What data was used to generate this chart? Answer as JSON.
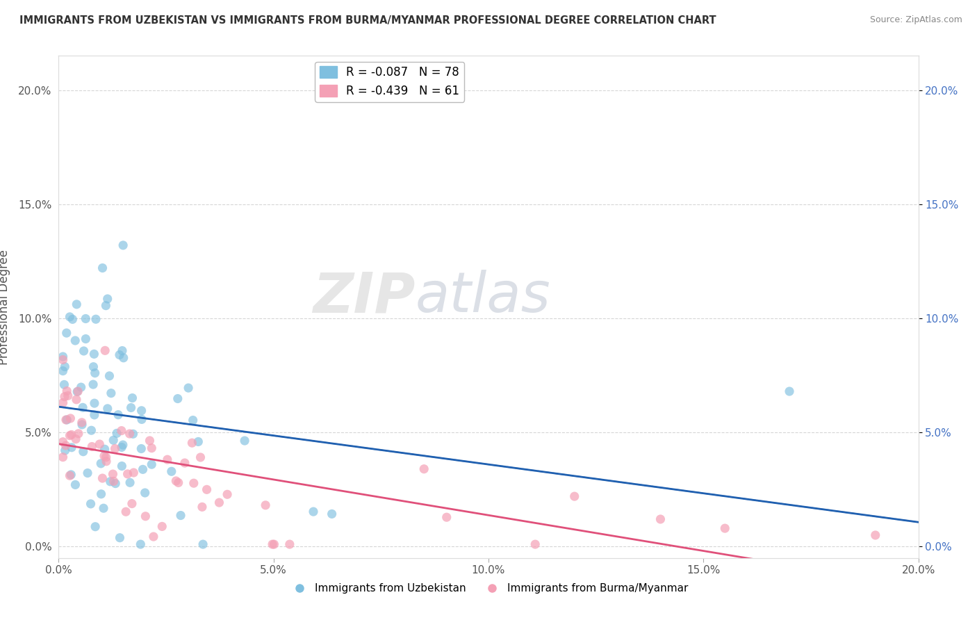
{
  "title": "IMMIGRANTS FROM UZBEKISTAN VS IMMIGRANTS FROM BURMA/MYANMAR PROFESSIONAL DEGREE CORRELATION CHART",
  "source": "Source: ZipAtlas.com",
  "ylabel": "Professional Degree",
  "series1_label": "Immigrants from Uzbekistan",
  "series2_label": "Immigrants from Burma/Myanmar",
  "series1_color": "#7fbfdf",
  "series2_color": "#f4a0b5",
  "series1_line_color": "#2060b0",
  "series2_line_color": "#e0507a",
  "series1_R": -0.087,
  "series1_N": 78,
  "series2_R": -0.439,
  "series2_N": 61,
  "xlim": [
    0.0,
    0.2
  ],
  "ylim": [
    -0.005,
    0.215
  ],
  "xtick_values": [
    0.0,
    0.05,
    0.1,
    0.15,
    0.2
  ],
  "xtick_labels": [
    "0.0%",
    "5.0%",
    "10.0%",
    "15.0%",
    "20.0%"
  ],
  "ytick_values": [
    0.0,
    0.05,
    0.1,
    0.15,
    0.2
  ],
  "ytick_labels": [
    "0.0%",
    "5.0%",
    "10.0%",
    "15.0%",
    "20.0%"
  ],
  "watermark_left": "ZIP",
  "watermark_right": "atlas",
  "background_color": "#ffffff",
  "grid_color": "#cccccc",
  "legend_color_blue": "#4472c4",
  "right_tick_color": "#4472c4"
}
